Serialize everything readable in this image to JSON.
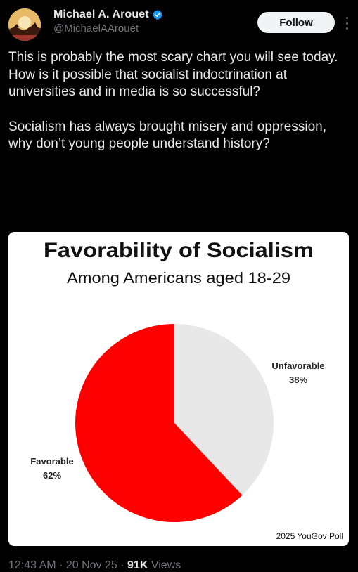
{
  "author": {
    "display_name": "Michael A. Arouet",
    "handle": "@MichaelAArouet",
    "verified": true,
    "verified_color": "#1d9bf0"
  },
  "header": {
    "follow_label": "Follow",
    "more_icon": "ellipsis-vertical-icon"
  },
  "tweet": {
    "paragraphs": [
      "This is probably the most scary chart you will see today. How is it possible that socialist indoctrination at universities and in media is so successful?",
      "Socialism has always brought misery and oppression, why don’t young people understand history?"
    ]
  },
  "footer": {
    "time": "12:43 AM",
    "separator": "·",
    "date": "20 Nov 25",
    "views_count": "91K",
    "views_label": "Views"
  },
  "chart_data": {
    "type": "pie",
    "title": "Favorability of Socialism",
    "subtitle": "Among Americans aged 18-29",
    "slices": [
      {
        "label": "Favorable",
        "value": 62,
        "value_label": "62%",
        "color": "#ff0000"
      },
      {
        "label": "Unfavorable",
        "value": 38,
        "value_label": "38%",
        "color": "#e8e8e8"
      }
    ],
    "source": "2025 YouGov Poll"
  }
}
